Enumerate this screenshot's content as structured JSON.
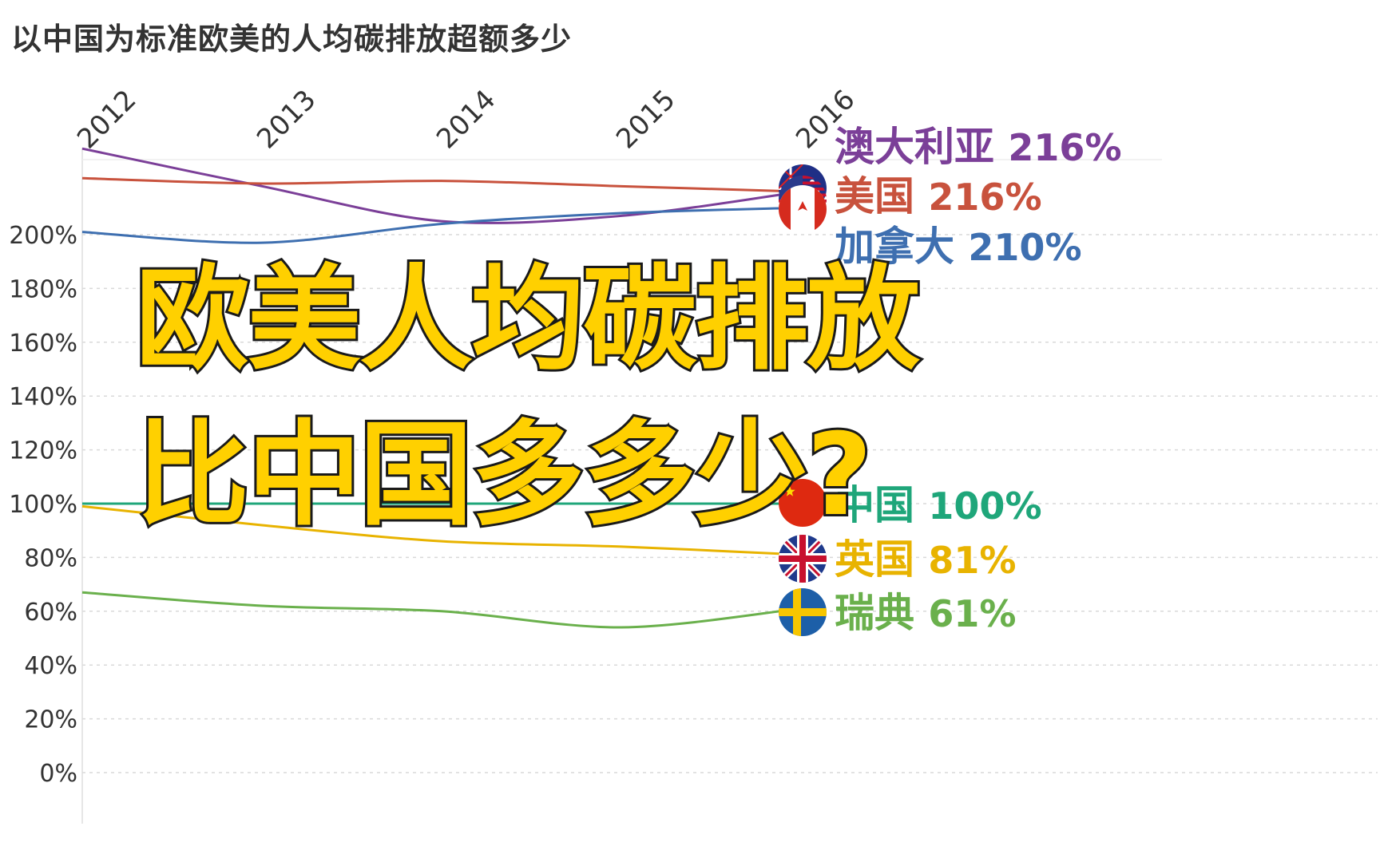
{
  "chart_data": {
    "type": "line",
    "title": "以中国为标准欧美的人均碳排放超额多少",
    "x": [
      "2012",
      "2013",
      "2014",
      "2015",
      "2016"
    ],
    "yticks": [
      "0%",
      "20%",
      "40%",
      "60%",
      "80%",
      "100%",
      "120%",
      "140%",
      "160%",
      "180%",
      "200%"
    ],
    "ylim": [
      0,
      240
    ],
    "grid": true,
    "series": [
      {
        "name": "澳大利亚",
        "label": "216%",
        "color": "#7b3f98",
        "flag": "australia-flag-icon",
        "values": [
          232,
          218,
          205,
          207,
          216
        ]
      },
      {
        "name": "美国",
        "label": "216%",
        "color": "#c8523d",
        "flag": "usa-flag-icon",
        "values": [
          221,
          219,
          220,
          218,
          216
        ]
      },
      {
        "name": "加拿大",
        "label": "210%",
        "color": "#3e6fb0",
        "flag": "canada-flag-icon",
        "values": [
          201,
          197,
          204,
          208,
          210
        ]
      },
      {
        "name": "中国",
        "label": "100%",
        "color": "#1fa67a",
        "flag": "china-flag-icon",
        "values": [
          100,
          100,
          100,
          100,
          100
        ]
      },
      {
        "name": "英国",
        "label": "81%",
        "color": "#e8b300",
        "flag": "uk-flag-icon",
        "values": [
          99,
          92,
          86,
          84,
          81
        ]
      },
      {
        "name": "瑞典",
        "label": "61%",
        "color": "#6ab04c",
        "flag": "sweden-flag-icon",
        "values": [
          67,
          62,
          60,
          54,
          61
        ]
      }
    ],
    "overlay": {
      "line1": "欧美人均碳排放",
      "line2": "比中国多多少?"
    }
  }
}
